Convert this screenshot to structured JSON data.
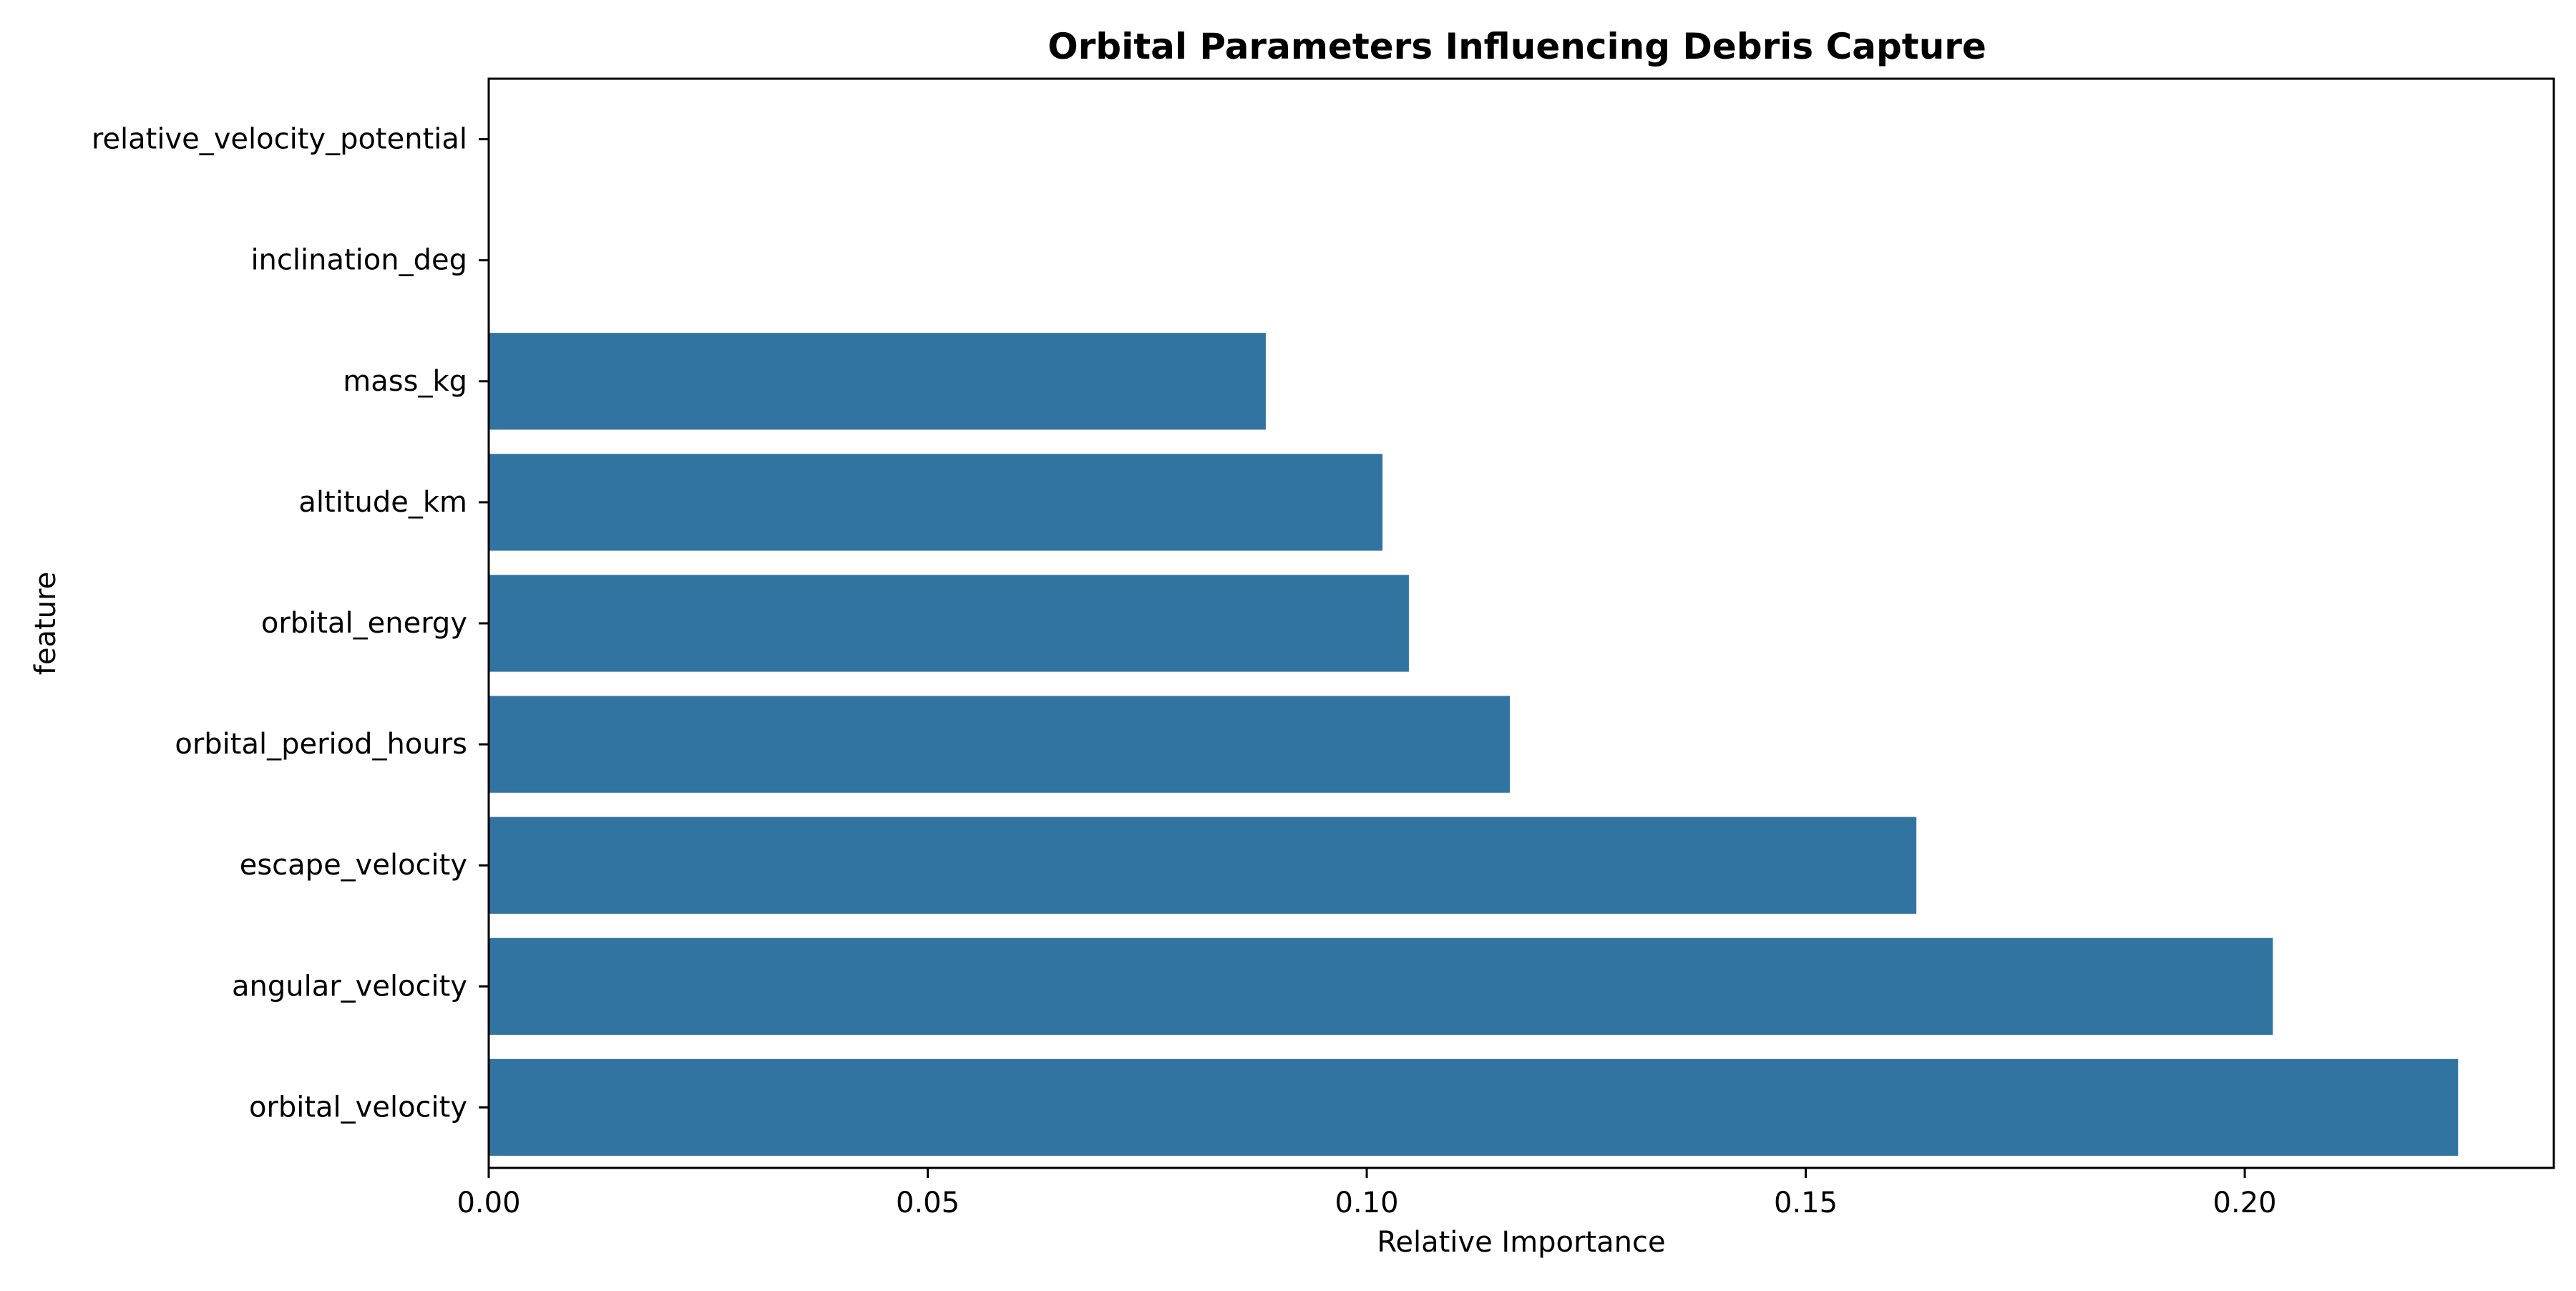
{
  "chart_data": {
    "type": "bar",
    "orientation": "horizontal",
    "title": "Orbital Parameters Influencing Debris Capture",
    "xlabel": "Relative Importance",
    "ylabel": "feature",
    "categories": [
      "relative_velocity_potential",
      "inclination_deg",
      "mass_kg",
      "altitude_km",
      "orbital_energy",
      "orbital_period_hours",
      "escape_velocity",
      "angular_velocity",
      "orbital_velocity"
    ],
    "values": [
      0.0,
      0.0,
      0.0885,
      0.1018,
      0.1048,
      0.1163,
      0.1626,
      0.2032,
      0.2243
    ],
    "xlim": [
      0,
      0.2352
    ],
    "xticks": [
      0.0,
      0.05,
      0.1,
      0.15,
      0.2
    ],
    "xtick_labels": [
      "0.00",
      "0.05",
      "0.10",
      "0.15",
      "0.20"
    ],
    "bar_color": "#3274a1",
    "grid": false,
    "legend": "none"
  }
}
